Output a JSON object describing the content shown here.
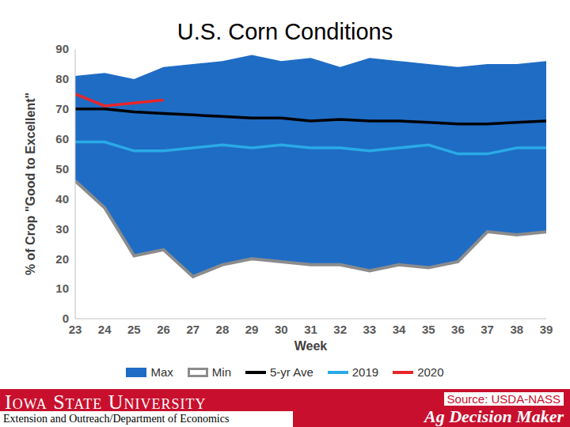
{
  "chart_data": {
    "type": "area_line",
    "title": "U.S. Corn Conditions",
    "x_label": "Week",
    "y_label": "% of Crop \"Good to Excellent\"",
    "x": [
      23,
      24,
      25,
      26,
      27,
      28,
      29,
      30,
      31,
      32,
      33,
      34,
      35,
      36,
      37,
      38,
      39
    ],
    "xlim": [
      23,
      39
    ],
    "xticks": [
      23,
      24,
      25,
      26,
      27,
      28,
      29,
      30,
      31,
      32,
      33,
      34,
      35,
      36,
      37,
      38,
      39
    ],
    "ylim": [
      0,
      90
    ],
    "yticks": [
      0,
      10,
      20,
      30,
      40,
      50,
      60,
      70,
      80,
      90
    ],
    "grid": false,
    "legend": "bottom",
    "series": [
      {
        "name": "Max",
        "type": "area",
        "color": "#1f6cc4",
        "values": [
          81,
          82,
          80,
          84,
          85,
          86,
          88,
          86,
          87,
          84,
          87,
          86,
          85,
          84,
          85,
          85,
          86
        ]
      },
      {
        "name": "Min",
        "type": "area",
        "color": "#8c8c8c",
        "values": [
          46,
          37,
          21,
          23,
          14,
          18,
          20,
          19,
          18,
          18,
          16,
          18,
          17,
          19,
          29,
          28,
          29
        ]
      },
      {
        "name": "5-yr Ave",
        "type": "line",
        "color": "#000000",
        "values": [
          70,
          70,
          69,
          68.5,
          68,
          67.5,
          67,
          67,
          66,
          66.5,
          66,
          66,
          65.5,
          65,
          65,
          65.5,
          66
        ]
      },
      {
        "name": "2019",
        "type": "line",
        "color": "#2aaae8",
        "values": [
          59,
          59,
          56,
          56,
          57,
          58,
          57,
          58,
          57,
          57,
          56,
          57,
          58,
          55,
          55,
          57,
          57
        ]
      },
      {
        "name": "2020",
        "type": "line",
        "color": "#e8262a",
        "values": [
          75,
          71,
          72,
          73,
          null,
          null,
          null,
          null,
          null,
          null,
          null,
          null,
          null,
          null,
          null,
          null,
          null
        ]
      }
    ]
  },
  "footer": {
    "university": "Iowa State University",
    "unit": "Extension and Outreach/Department of Economics",
    "source": "Source: USDA-NASS",
    "brand": "Ag Decision Maker"
  }
}
